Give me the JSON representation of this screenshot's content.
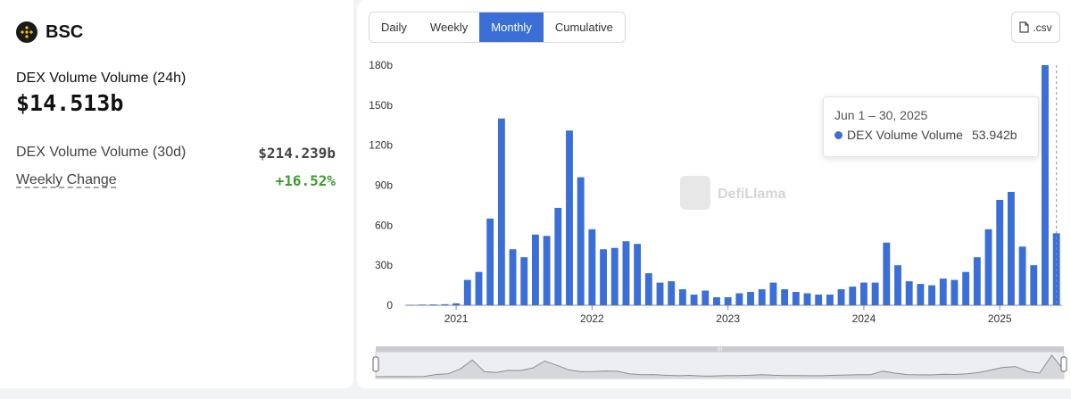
{
  "chain": {
    "name": "BSC"
  },
  "stats": {
    "vol24_label": "DEX Volume Volume (24h)",
    "vol24_value": "$14.513b",
    "vol30_label": "DEX Volume Volume (30d)",
    "vol30_value": "$214.239b",
    "weekly_label": "Weekly Change",
    "weekly_value": "+16.52%"
  },
  "tabs": [
    "Daily",
    "Weekly",
    "Monthly",
    "Cumulative"
  ],
  "active_tab": "Monthly",
  "csv_label": ".csv",
  "watermark": "DefiLlama",
  "tooltip": {
    "date": "Jun 1 – 30, 2025",
    "series": "DEX Volume Volume",
    "value": "53.942b"
  },
  "colors": {
    "bar": "#3b6ed6",
    "positive": "#3a9d2f"
  },
  "chart_data": {
    "type": "bar",
    "ylim": [
      0,
      180
    ],
    "yticks": [
      0,
      30,
      60,
      90,
      120,
      150,
      180
    ],
    "ytick_labels": [
      "0",
      "30b",
      "60b",
      "90b",
      "120b",
      "150b",
      "180b"
    ],
    "xtick_labels": [
      "2021",
      "2022",
      "2023",
      "2024",
      "2025"
    ],
    "xtick_month_index": [
      4,
      16,
      28,
      40,
      52
    ],
    "grid": false,
    "legend": "none",
    "series": [
      {
        "name": "DEX Volume Volume",
        "start": "2020-09",
        "values": [
          0.3,
          0.5,
          0.6,
          0.8,
          1.5,
          19,
          25,
          65,
          140,
          42,
          36,
          53,
          52,
          73,
          131,
          96,
          57,
          42,
          43,
          48,
          46,
          24,
          17,
          18,
          12,
          8,
          11,
          6,
          6,
          9,
          10,
          12,
          17,
          12,
          10,
          9,
          8,
          8,
          12,
          14,
          17,
          17,
          47,
          30,
          18,
          16,
          15,
          20,
          19,
          25,
          36,
          57,
          79,
          85,
          44,
          30,
          180,
          54
        ]
      }
    ]
  }
}
